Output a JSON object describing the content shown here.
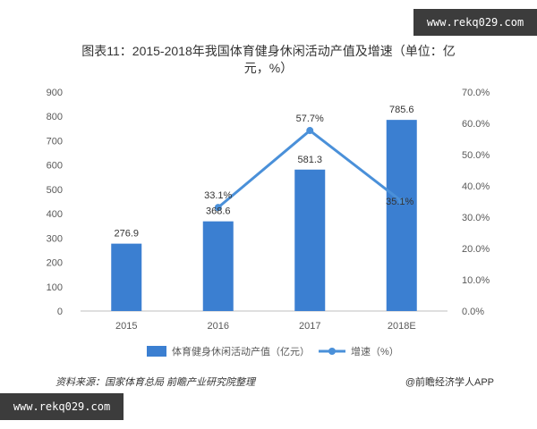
{
  "watermarks": {
    "top": "www.rekq029.com",
    "bottom": "www.rekq029.com"
  },
  "source_note": "资料来源：国家体育总局 前瞻产业研究院整理",
  "brand_credit": "@前瞻经济学人APP",
  "colors": {
    "bar": "#3b7fd1",
    "line": "#4a90d9",
    "axis": "#bfbfbf",
    "text": "#595959"
  },
  "chart_data": {
    "type": "bar",
    "title_lines": [
      "图表11：2015-2018年我国体育健身休闲活动产值及增速（单位：亿",
      "元，%）"
    ],
    "categories": [
      "2015",
      "2016",
      "2017",
      "2018E"
    ],
    "y_left": {
      "min": 0,
      "max": 900,
      "step": 100,
      "ticks": [
        "0",
        "100",
        "200",
        "300",
        "400",
        "500",
        "600",
        "700",
        "800",
        "900"
      ]
    },
    "y_right": {
      "min": 0,
      "max": 70,
      "step": 10,
      "ticks": [
        "0.0%",
        "10.0%",
        "20.0%",
        "30.0%",
        "40.0%",
        "50.0%",
        "60.0%",
        "70.0%"
      ]
    },
    "series": [
      {
        "name": "体育健身休闲活动产值（亿元）",
        "kind": "bar",
        "axis": "left",
        "values": [
          276.9,
          368.6,
          581.3,
          785.6
        ],
        "labels": [
          "276.9",
          "368.6",
          "581.3",
          "785.6"
        ]
      },
      {
        "name": "增速（%）",
        "kind": "line",
        "axis": "right",
        "values": [
          null,
          33.1,
          57.7,
          35.1
        ],
        "labels": [
          "",
          "33.1%",
          "57.7%",
          "35.1%"
        ]
      }
    ],
    "legend_position": "bottom",
    "grid": false
  }
}
